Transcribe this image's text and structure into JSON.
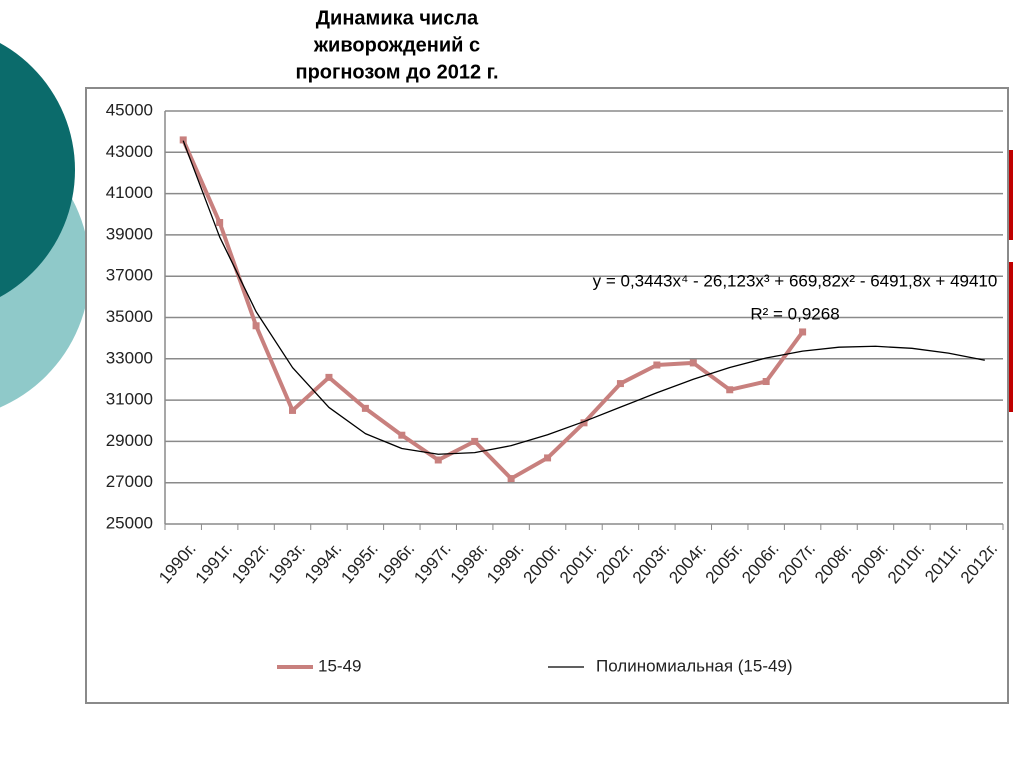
{
  "chart_data": {
    "type": "line",
    "title": [
      "Динамика числа",
      "живорождений  с",
      "прогнозом до 2012 г."
    ],
    "categories": [
      "1990г.",
      "1991г.",
      "1992г.",
      "1993г.",
      "1994г.",
      "1995г.",
      "1996г.",
      "1997г.",
      "1998г.",
      "1999г.",
      "2000г.",
      "2001г.",
      "2002г.",
      "2003г.",
      "2004г.",
      "2005г.",
      "2006г.",
      "2007г.",
      "2008г.",
      "2009г.",
      "2010г.",
      "2011г.",
      "2012г."
    ],
    "series": [
      {
        "name": "15-49",
        "color": "#c8807e",
        "values": [
          43600,
          39600,
          34600,
          30500,
          32100,
          30600,
          29300,
          28100,
          29000,
          27200,
          28200,
          29900,
          31800,
          32700,
          32800,
          31500,
          31900,
          34300,
          null,
          null,
          null,
          null,
          null
        ]
      },
      {
        "name": "Полиномиальная (15-49)",
        "color": "#000000",
        "values": [
          43562,
          38902,
          35285,
          32576,
          30646,
          29376,
          28655,
          28379,
          28455,
          28794,
          29320,
          29961,
          30658,
          31355,
          32008,
          32580,
          33041,
          33373,
          33563,
          33606,
          33507,
          33276,
          32932
        ]
      }
    ],
    "annotations": [
      "y = 0,3443x⁴ - 26,123x³ + 669,82x² - 6491,8x + 49410",
      "R² = 0,9268"
    ],
    "ylim": [
      25000,
      45000
    ],
    "yticks": [
      25000,
      27000,
      29000,
      31000,
      33000,
      35000,
      37000,
      39000,
      41000,
      43000,
      45000
    ],
    "grid": true,
    "legend": "bottom"
  }
}
